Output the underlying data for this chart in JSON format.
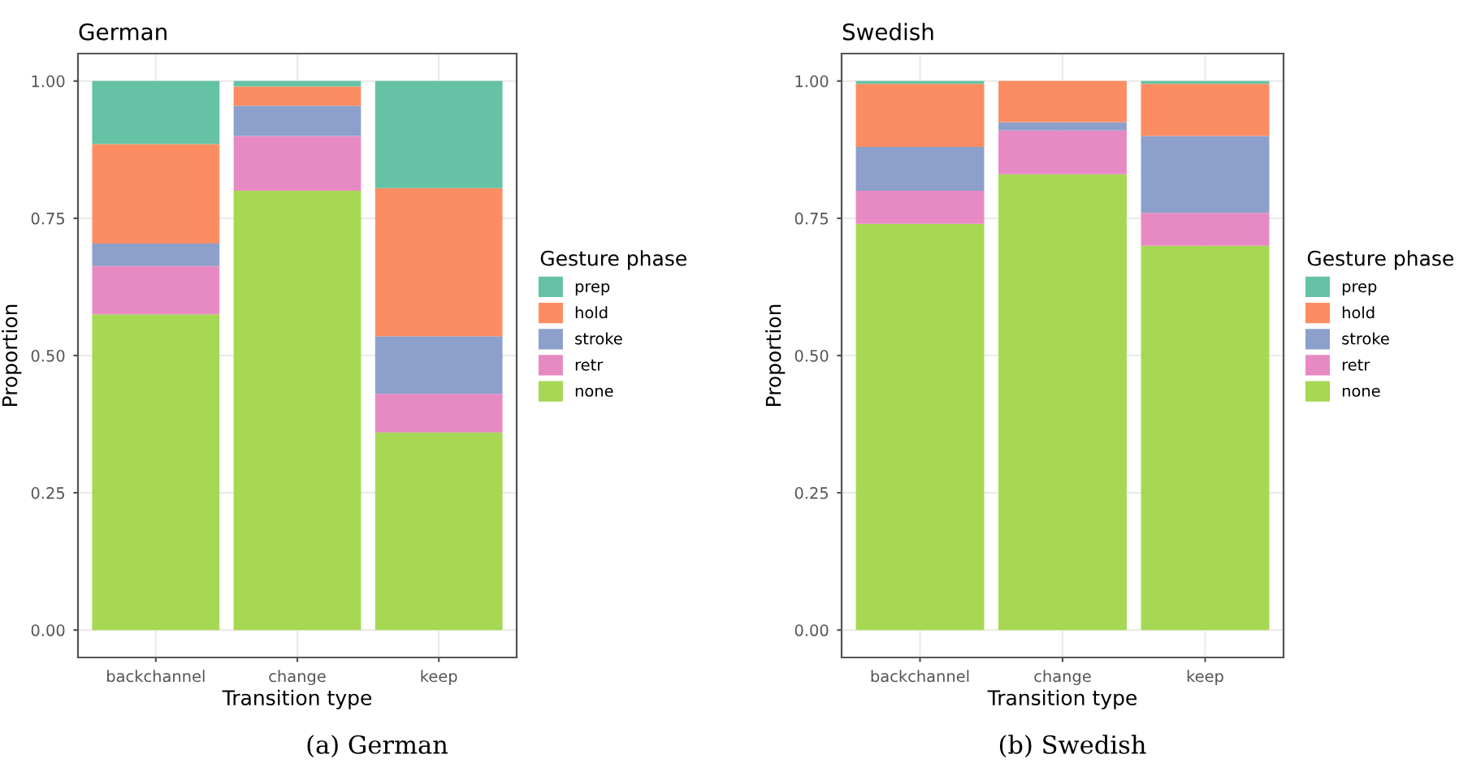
{
  "chart_data": [
    {
      "type": "bar",
      "title": "German",
      "xlabel": "Transition type",
      "ylabel": "Proportion",
      "legend_title": "Gesture phase",
      "stacked": true,
      "grid": true,
      "legend": "right",
      "categories": [
        "backchannel",
        "change",
        "keep"
      ],
      "ylim": [
        -0.05,
        1.05
      ],
      "yticks": [
        {
          "value": 0,
          "label": "0.00"
        },
        {
          "value": 0.25,
          "label": "0.25"
        },
        {
          "value": 0.5,
          "label": "0.50"
        },
        {
          "value": 0.75,
          "label": "0.75"
        },
        {
          "value": 1,
          "label": "1.00"
        }
      ],
      "series": [
        {
          "name": "none",
          "color": "#a6d854",
          "values": [
            0.575,
            0.8,
            0.36
          ]
        },
        {
          "name": "retr",
          "color": "#e78ac3",
          "values": [
            0.088,
            0.1,
            0.07
          ]
        },
        {
          "name": "stroke",
          "color": "#8da0cb",
          "values": [
            0.041,
            0.055,
            0.105
          ]
        },
        {
          "name": "hold",
          "color": "#fc8d62",
          "values": [
            0.181,
            0.035,
            0.27
          ]
        },
        {
          "name": "prep",
          "color": "#66c2a5",
          "values": [
            0.115,
            0.01,
            0.195
          ]
        }
      ],
      "annotations": [
        "(a) German"
      ]
    },
    {
      "type": "bar",
      "title": "Swedish",
      "xlabel": "Transition type",
      "ylabel": "Proportion",
      "legend_title": "Gesture phase",
      "stacked": true,
      "grid": true,
      "legend": "right",
      "categories": [
        "backchannel",
        "change",
        "keep"
      ],
      "ylim": [
        -0.05,
        1.05
      ],
      "yticks": [
        {
          "value": 0,
          "label": "0.00"
        },
        {
          "value": 0.25,
          "label": "0.25"
        },
        {
          "value": 0.5,
          "label": "0.50"
        },
        {
          "value": 0.75,
          "label": "0.75"
        },
        {
          "value": 1,
          "label": "1.00"
        }
      ],
      "series": [
        {
          "name": "none",
          "color": "#a6d854",
          "values": [
            0.74,
            0.83,
            0.7
          ]
        },
        {
          "name": "retr",
          "color": "#e78ac3",
          "values": [
            0.06,
            0.08,
            0.06
          ]
        },
        {
          "name": "stroke",
          "color": "#8da0cb",
          "values": [
            0.08,
            0.015,
            0.14
          ]
        },
        {
          "name": "hold",
          "color": "#fc8d62",
          "values": [
            0.115,
            0.075,
            0.095
          ]
        },
        {
          "name": "prep",
          "color": "#66c2a5",
          "values": [
            0.005,
            0,
            0.005
          ]
        }
      ],
      "annotations": [
        "(b) Swedish"
      ]
    }
  ]
}
